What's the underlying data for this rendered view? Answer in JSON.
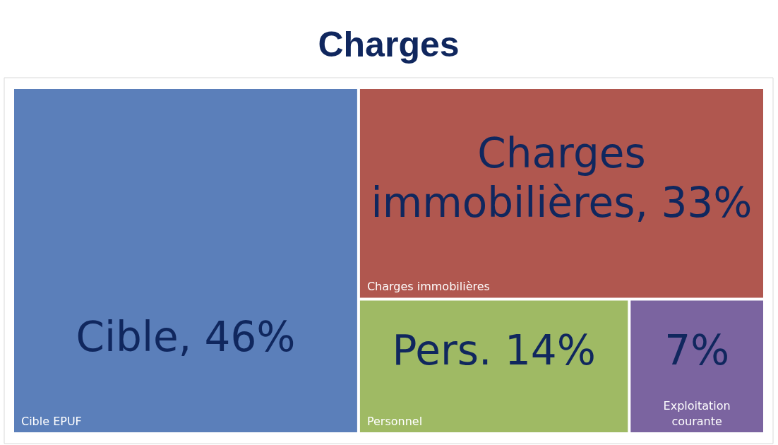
{
  "chart_data": {
    "type": "other",
    "title": "Charges",
    "categories": [
      "Cible EPUF",
      "Charges immobilières",
      "Personnel",
      "Exploitation courante"
    ],
    "values": [
      46,
      33,
      14,
      7
    ],
    "colors": [
      "#5b7fba",
      "#b0574f",
      "#9fba64",
      "#7b64a0"
    ],
    "value_labels": [
      "Cible, 46%",
      "Charges immobilières, 33%",
      "Pers. 14%",
      "7%"
    ]
  }
}
